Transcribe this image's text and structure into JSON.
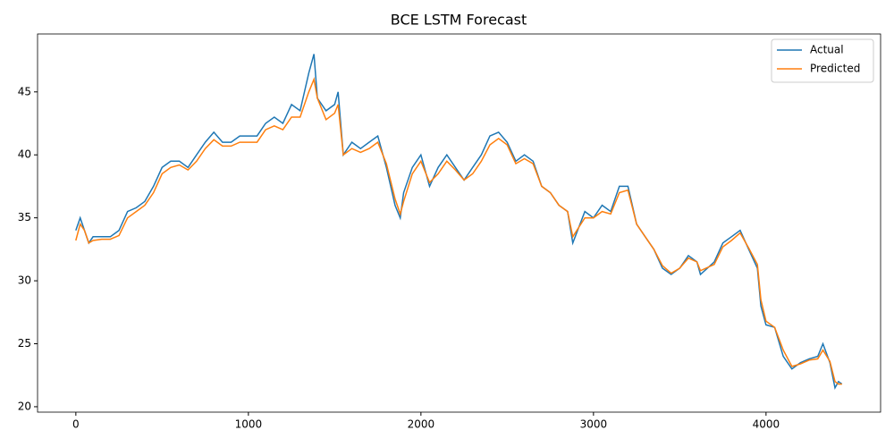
{
  "chart_data": {
    "type": "line",
    "title": "BCE LSTM Forecast",
    "x": [
      0,
      25,
      50,
      75,
      100,
      150,
      200,
      250,
      300,
      350,
      400,
      450,
      500,
      550,
      600,
      650,
      700,
      750,
      800,
      850,
      900,
      950,
      1000,
      1050,
      1100,
      1150,
      1200,
      1250,
      1300,
      1350,
      1380,
      1400,
      1450,
      1500,
      1520,
      1550,
      1600,
      1650,
      1700,
      1750,
      1800,
      1850,
      1880,
      1900,
      1950,
      2000,
      2050,
      2100,
      2150,
      2200,
      2250,
      2300,
      2350,
      2400,
      2450,
      2500,
      2550,
      2600,
      2650,
      2700,
      2750,
      2800,
      2850,
      2880,
      2950,
      3000,
      3050,
      3100,
      3150,
      3200,
      3250,
      3300,
      3350,
      3400,
      3450,
      3500,
      3550,
      3600,
      3620,
      3700,
      3750,
      3800,
      3850,
      3900,
      3950,
      3970,
      4000,
      4050,
      4100,
      4150,
      4200,
      4250,
      4300,
      4330,
      4370,
      4400,
      4420,
      4440
    ],
    "series": [
      {
        "name": "Actual",
        "color": "#1f77b4",
        "values": [
          34,
          35,
          34,
          33,
          33.5,
          33.5,
          33.5,
          34,
          35.5,
          35.8,
          36.3,
          37.5,
          39,
          39.5,
          39.5,
          39,
          40,
          41,
          41.8,
          41,
          41,
          41.5,
          41.5,
          41.5,
          42.5,
          43,
          42.5,
          44,
          43.5,
          46.5,
          48,
          44.5,
          43.5,
          44,
          45,
          40,
          41,
          40.5,
          41,
          41.5,
          39,
          36,
          35,
          37,
          39,
          40,
          37.5,
          39,
          40,
          39,
          38,
          39,
          40,
          41.5,
          41.8,
          41,
          39.5,
          40,
          39.5,
          37.5,
          37,
          36,
          35.5,
          33,
          35.5,
          35,
          36,
          35.5,
          37.5,
          37.5,
          34.5,
          33.5,
          32.5,
          31,
          30.5,
          31,
          32,
          31.5,
          30.5,
          31.5,
          33,
          33.5,
          34,
          32.5,
          31,
          28,
          26.5,
          26.3,
          24,
          23,
          23.5,
          23.8,
          24,
          25,
          23.5,
          21.5,
          22,
          21.8
        ]
      },
      {
        "name": "Predicted",
        "color": "#ff7f0e",
        "values": [
          33.2,
          34.5,
          34,
          33,
          33.2,
          33.3,
          33.3,
          33.6,
          35,
          35.5,
          36,
          37,
          38.5,
          39,
          39.2,
          38.8,
          39.5,
          40.5,
          41.2,
          40.7,
          40.7,
          41,
          41,
          41,
          42,
          42.3,
          42,
          43,
          43,
          45,
          46,
          44.5,
          42.8,
          43.3,
          44,
          40,
          40.5,
          40.2,
          40.5,
          41,
          39.3,
          36.5,
          35.3,
          36.3,
          38.5,
          39.5,
          37.8,
          38.5,
          39.5,
          38.8,
          38,
          38.5,
          39.5,
          40.8,
          41.3,
          40.8,
          39.3,
          39.7,
          39.3,
          37.5,
          37,
          36,
          35.5,
          33.5,
          35,
          35,
          35.5,
          35.3,
          37,
          37.2,
          34.5,
          33.5,
          32.5,
          31.2,
          30.6,
          31,
          31.8,
          31.5,
          30.8,
          31.3,
          32.7,
          33.2,
          33.8,
          32.6,
          31.3,
          28.5,
          26.8,
          26.3,
          24.5,
          23.2,
          23.4,
          23.7,
          23.8,
          24.5,
          23.6,
          22,
          21.8,
          21.8
        ]
      }
    ],
    "xlim": [
      -222,
      4664
    ],
    "ylim": [
      19.57,
      49.6
    ],
    "xticks": [
      0,
      1000,
      2000,
      3000,
      4000
    ],
    "yticks": [
      20,
      25,
      30,
      35,
      40,
      45
    ],
    "legend": "upper right"
  }
}
